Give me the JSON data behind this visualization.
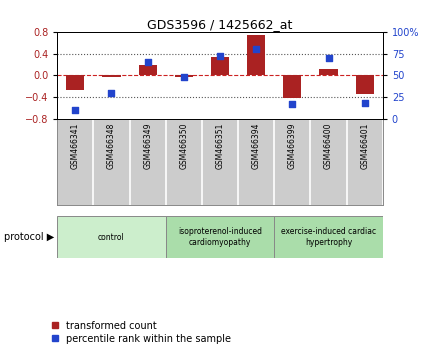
{
  "title": "GDS3596 / 1425662_at",
  "samples": [
    "GSM466341",
    "GSM466348",
    "GSM466349",
    "GSM466350",
    "GSM466351",
    "GSM466394",
    "GSM466399",
    "GSM466400",
    "GSM466401"
  ],
  "bar_values": [
    -0.27,
    -0.04,
    0.18,
    -0.03,
    0.33,
    0.74,
    -0.42,
    0.12,
    -0.35
  ],
  "dot_values": [
    10,
    30,
    65,
    48,
    72,
    80,
    17,
    70,
    18
  ],
  "group_labels": [
    "control",
    "isoproterenol-induced\ncardiomyopathy",
    "exercise-induced cardiac\nhypertrophy"
  ],
  "group_ends": [
    3,
    6,
    9
  ],
  "group_color_light": "#cceecc",
  "group_color_mid": "#aaddaa",
  "ylim_left": [
    -0.8,
    0.8
  ],
  "ylim_right": [
    0,
    100
  ],
  "yticks_left": [
    -0.8,
    -0.4,
    0.0,
    0.4,
    0.8
  ],
  "yticks_right": [
    0,
    25,
    50,
    75,
    100
  ],
  "ytick_right_labels": [
    "0",
    "25",
    "50",
    "75",
    "100%"
  ],
  "bar_color": "#aa2222",
  "dot_color": "#2244cc",
  "hline_color": "#cc2222",
  "dot_line_color": "#555555",
  "legend_bar_label": "transformed count",
  "legend_dot_label": "percentile rank within the sample",
  "protocol_label": "protocol",
  "bg_color": "#ffffff",
  "xlabels_bg": "#cccccc",
  "bar_width": 0.5
}
